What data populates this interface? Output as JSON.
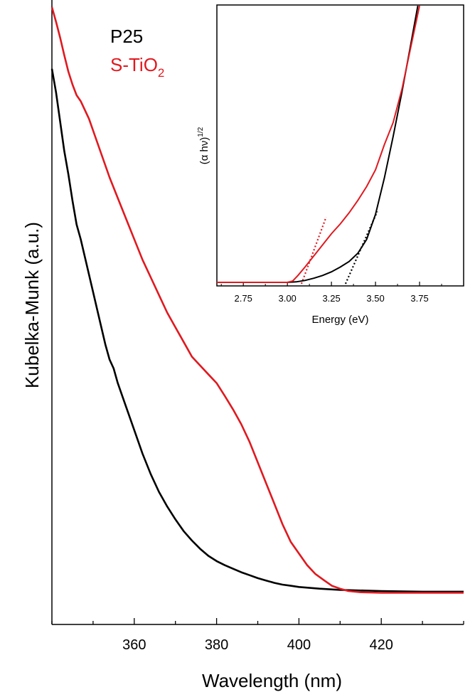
{
  "chart_data": [
    {
      "type": "line",
      "xlabel": "Wavelength (nm)",
      "ylabel": "Kubelka-Munk (a.u.)",
      "xlim": [
        340,
        440
      ],
      "ylim": [
        0,
        1
      ],
      "x_ticks": [
        360,
        380,
        400,
        420
      ],
      "y_ticks": [],
      "legend": {
        "placement": "top-left"
      },
      "series": [
        {
          "name": "P25",
          "color": "#000000",
          "points": [
            [
              340,
              0.895
            ],
            [
              341,
              0.855
            ],
            [
              342,
              0.805
            ],
            [
              343,
              0.755
            ],
            [
              344,
              0.715
            ],
            [
              345,
              0.67
            ],
            [
              346,
              0.63
            ],
            [
              347,
              0.605
            ],
            [
              348,
              0.575
            ],
            [
              349,
              0.545
            ],
            [
              350,
              0.515
            ],
            [
              351,
              0.485
            ],
            [
              352,
              0.455
            ],
            [
              353,
              0.425
            ],
            [
              354,
              0.4
            ],
            [
              355,
              0.385
            ],
            [
              356,
              0.36
            ],
            [
              358,
              0.32
            ],
            [
              360,
              0.28
            ],
            [
              362,
              0.24
            ],
            [
              364,
              0.205
            ],
            [
              366,
              0.175
            ],
            [
              368,
              0.15
            ],
            [
              370,
              0.128
            ],
            [
              372,
              0.108
            ],
            [
              374,
              0.092
            ],
            [
              376,
              0.078
            ],
            [
              378,
              0.066
            ],
            [
              380,
              0.057
            ],
            [
              382,
              0.05
            ],
            [
              384,
              0.044
            ],
            [
              386,
              0.038
            ],
            [
              388,
              0.033
            ],
            [
              390,
              0.028
            ],
            [
              392,
              0.024
            ],
            [
              394,
              0.02
            ],
            [
              396,
              0.017
            ],
            [
              398,
              0.015
            ],
            [
              400,
              0.013
            ],
            [
              405,
              0.01
            ],
            [
              410,
              0.008
            ],
            [
              420,
              0.006
            ],
            [
              430,
              0.005
            ],
            [
              440,
              0.005
            ]
          ]
        },
        {
          "name": "S-TiO2",
          "name_base": "S-TiO",
          "name_sub": "2",
          "color": "#e0191f",
          "points": [
            [
              340,
              1.0
            ],
            [
              341,
              0.975
            ],
            [
              342,
              0.948
            ],
            [
              343,
              0.918
            ],
            [
              344,
              0.89
            ],
            [
              345,
              0.868
            ],
            [
              346,
              0.85
            ],
            [
              347,
              0.84
            ],
            [
              348,
              0.825
            ],
            [
              349,
              0.81
            ],
            [
              350,
              0.79
            ],
            [
              351,
              0.77
            ],
            [
              352,
              0.75
            ],
            [
              353,
              0.73
            ],
            [
              354,
              0.71
            ],
            [
              356,
              0.675
            ],
            [
              358,
              0.64
            ],
            [
              360,
              0.605
            ],
            [
              362,
              0.57
            ],
            [
              364,
              0.54
            ],
            [
              366,
              0.51
            ],
            [
              368,
              0.48
            ],
            [
              370,
              0.455
            ],
            [
              372,
              0.43
            ],
            [
              374,
              0.405
            ],
            [
              376,
              0.39
            ],
            [
              378,
              0.375
            ],
            [
              380,
              0.36
            ],
            [
              382,
              0.338
            ],
            [
              384,
              0.315
            ],
            [
              386,
              0.29
            ],
            [
              388,
              0.26
            ],
            [
              390,
              0.225
            ],
            [
              392,
              0.19
            ],
            [
              394,
              0.155
            ],
            [
              396,
              0.12
            ],
            [
              398,
              0.09
            ],
            [
              400,
              0.07
            ],
            [
              402,
              0.05
            ],
            [
              404,
              0.035
            ],
            [
              406,
              0.025
            ],
            [
              408,
              0.015
            ],
            [
              410,
              0.01
            ],
            [
              412,
              0.006
            ],
            [
              415,
              0.004
            ],
            [
              420,
              0.003
            ],
            [
              430,
              0.003
            ],
            [
              440,
              0.003
            ]
          ]
        }
      ]
    },
    {
      "type": "line",
      "xlabel": "Energy (eV)",
      "ylabel_base": "(α hν)",
      "ylabel_sup": "1/2",
      "xlim": [
        2.6,
        4.0
      ],
      "ylim": [
        0,
        1
      ],
      "x_ticks": [
        2.75,
        3.0,
        3.25,
        3.5,
        3.75
      ],
      "x_tick_labels": [
        "2.75",
        "3.00",
        "3.25",
        "3.50",
        "3.75"
      ],
      "series": [
        {
          "name": "P25",
          "color": "#000000",
          "points": [
            [
              2.6,
              0.005
            ],
            [
              3.0,
              0.005
            ],
            [
              3.05,
              0.007
            ],
            [
              3.1,
              0.012
            ],
            [
              3.15,
              0.02
            ],
            [
              3.2,
              0.03
            ],
            [
              3.25,
              0.043
            ],
            [
              3.3,
              0.06
            ],
            [
              3.35,
              0.08
            ],
            [
              3.4,
              0.11
            ],
            [
              3.45,
              0.16
            ],
            [
              3.5,
              0.25
            ],
            [
              3.55,
              0.38
            ],
            [
              3.6,
              0.53
            ],
            [
              3.65,
              0.69
            ],
            [
              3.7,
              0.86
            ],
            [
              3.74,
              1.0
            ]
          ]
        },
        {
          "name": "S-TiO2",
          "color": "#e0191f",
          "points": [
            [
              2.6,
              0.005
            ],
            [
              3.0,
              0.005
            ],
            [
              3.03,
              0.01
            ],
            [
              3.06,
              0.03
            ],
            [
              3.1,
              0.06
            ],
            [
              3.15,
              0.1
            ],
            [
              3.2,
              0.14
            ],
            [
              3.25,
              0.18
            ],
            [
              3.3,
              0.215
            ],
            [
              3.35,
              0.255
            ],
            [
              3.4,
              0.3
            ],
            [
              3.45,
              0.35
            ],
            [
              3.5,
              0.41
            ],
            [
              3.55,
              0.5
            ],
            [
              3.6,
              0.58
            ],
            [
              3.65,
              0.7
            ],
            [
              3.7,
              0.85
            ],
            [
              3.75,
              1.0
            ]
          ]
        }
      ],
      "tangent_lines": [
        {
          "color": "#e0191f",
          "points": [
            [
              3.08,
              0.0
            ],
            [
              3.22,
              0.24
            ]
          ]
        },
        {
          "color": "#000000",
          "points": [
            [
              3.33,
              0.0
            ],
            [
              3.51,
              0.26
            ]
          ]
        }
      ]
    }
  ]
}
